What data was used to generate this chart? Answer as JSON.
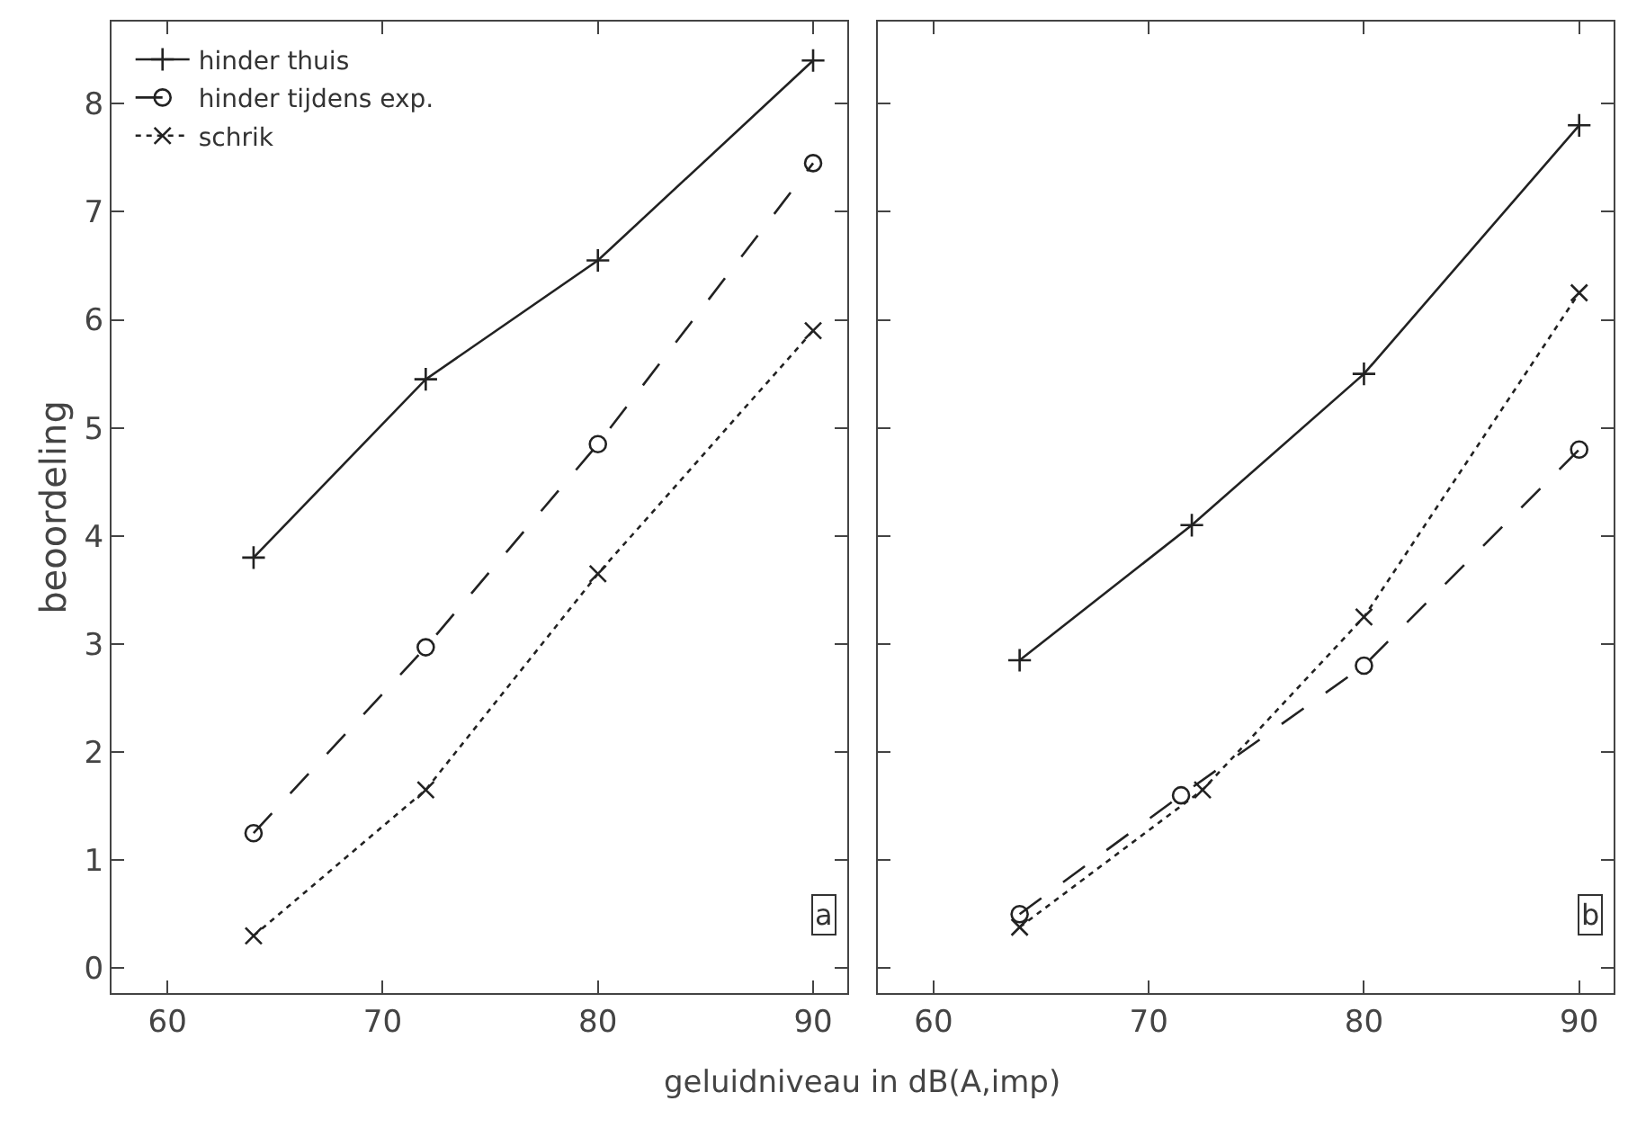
{
  "chart_data": [
    {
      "type": "line",
      "ylabel": "beoordeling",
      "xlabel": "geluidniveau in dB(A,imp)",
      "xlim": [
        57.4,
        91.6
      ],
      "xticks": [
        60,
        70,
        80,
        90
      ],
      "ylim": [
        -0.23,
        8.76
      ],
      "yticks": [
        0,
        1,
        2,
        3,
        4,
        5,
        6,
        7,
        8
      ],
      "legend": "top left",
      "annotations": [
        "a"
      ],
      "series": [
        {
          "name": "hinder thuis",
          "color": "#222222",
          "marker": "cross",
          "line_style": "solid",
          "x": [
            64,
            72,
            80,
            90
          ],
          "values": [
            3.8,
            5.45,
            6.55,
            8.4
          ]
        },
        {
          "name": "hinder tijdens exp.",
          "color": "#222222",
          "marker": "circle",
          "line_style": "dashed",
          "x": [
            64,
            72,
            80,
            90
          ],
          "values": [
            1.25,
            2.97,
            4.85,
            7.45
          ]
        },
        {
          "name": "schrik",
          "color": "#222222",
          "marker": "x",
          "line_style": "dotted",
          "x": [
            64,
            72,
            80,
            90
          ],
          "values": [
            0.3,
            1.65,
            3.65,
            5.9
          ]
        }
      ]
    },
    {
      "type": "line",
      "xlim": [
        57.4,
        91.6
      ],
      "xticks": [
        60,
        70,
        80,
        90
      ],
      "ylim": [
        -0.23,
        8.76
      ],
      "yticks": [
        0,
        1,
        2,
        3,
        4,
        5,
        6,
        7,
        8
      ],
      "tick_labels": "x",
      "annotations": [
        "b"
      ],
      "series": [
        {
          "color": "#222222",
          "marker": "cross",
          "line_style": "solid",
          "x": [
            64,
            72,
            80,
            90
          ],
          "values": [
            2.85,
            4.1,
            5.5,
            7.8
          ]
        },
        {
          "color": "#222222",
          "marker": "circle",
          "line_style": "dashed",
          "x": [
            64,
            71.5,
            80,
            90
          ],
          "values": [
            0.5,
            1.6,
            2.8,
            4.8
          ]
        },
        {
          "color": "#222222",
          "marker": "x",
          "line_style": "dotted",
          "x": [
            64,
            72.5,
            80,
            90
          ],
          "values": [
            0.38,
            1.65,
            3.25,
            6.25
          ]
        }
      ]
    }
  ]
}
